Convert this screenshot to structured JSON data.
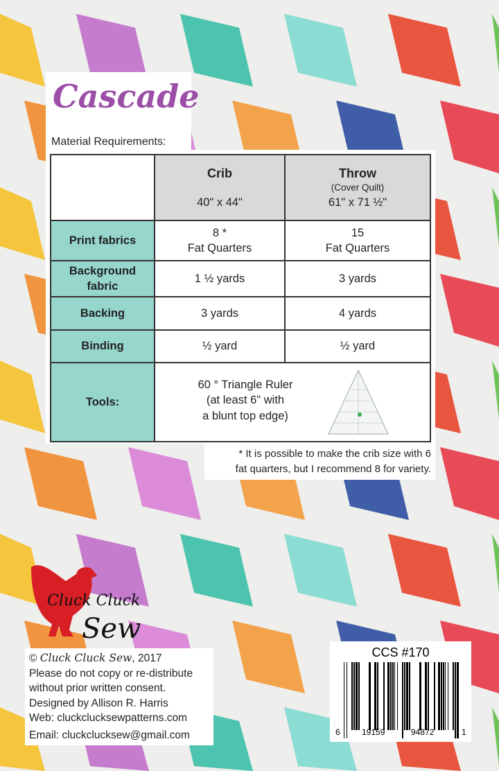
{
  "title": "Cascade",
  "material_heading": "Material Requirements:",
  "table": {
    "columns": [
      {
        "name": "Crib",
        "sub": "",
        "size": "40\" x 44\""
      },
      {
        "name": "Throw",
        "sub": "(Cover Quilt)",
        "size": "61\" x 71 ½\""
      }
    ],
    "rows": [
      {
        "label": "Print fabrics",
        "crib": [
          "8 *",
          "Fat Quarters"
        ],
        "throw": [
          "15",
          "Fat Quarters"
        ]
      },
      {
        "label": "Background fabric",
        "crib": [
          "1 ½  yards"
        ],
        "throw": [
          "3  yards"
        ]
      },
      {
        "label": "Backing",
        "crib": [
          "3  yards"
        ],
        "throw": [
          "4 yards"
        ]
      },
      {
        "label": "Binding",
        "crib": [
          "½ yard"
        ],
        "throw": [
          "½ yard"
        ]
      }
    ],
    "tools": {
      "label": "Tools:",
      "lines": [
        "60 ° Triangle Ruler",
        "(at least 6\" with",
        "a blunt top edge)"
      ]
    }
  },
  "footnote": [
    "* It is possible to make the crib size with 6",
    "fat quarters, but I recommend 8 for variety."
  ],
  "logo": {
    "line1": "Cluck Cluck",
    "line2": "Sew",
    "color": "#d81f26"
  },
  "info": {
    "copyright_prefix": "©",
    "copyright_brand": "Cluck Cluck Sew",
    "copyright_year": ", 2017",
    "lines": [
      "Please do not copy or re-distribute",
      "without prior written consent.",
      "Designed by Allison R. Harris",
      "Web: cluckclucksewpatterns.com",
      "Email: cluckclucksew@gmail.com"
    ]
  },
  "barcode": {
    "code": "CCS #170",
    "digits": [
      "6",
      "19159",
      "94872",
      "1"
    ]
  },
  "colors": {
    "accent": "#96d6cc",
    "header": "#d9d9da",
    "title": "#9b4fa6"
  }
}
